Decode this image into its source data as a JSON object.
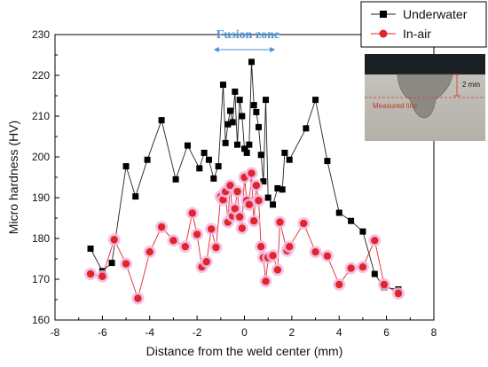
{
  "chart_data": {
    "type": "line",
    "xlabel": "Distance from the weld center (mm)",
    "ylabel": "Micro hardness (HV)",
    "xlim": [
      -8,
      8
    ],
    "ylim": [
      160,
      230
    ],
    "xticks": [
      -8,
      -6,
      -4,
      -2,
      0,
      2,
      4,
      6,
      8
    ],
    "yticks": [
      160,
      170,
      180,
      190,
      200,
      210,
      220,
      230
    ],
    "grid": false,
    "legend_position": "top-right",
    "annotation": {
      "label": "Fusion zone",
      "x_start": -1.3,
      "x_end": 1.3,
      "color": "#4a8fd6"
    },
    "series": [
      {
        "name": "Underwater",
        "marker": "square",
        "color": "#000000",
        "points": [
          [
            -6.5,
            177.5
          ],
          [
            -6.0,
            172.0
          ],
          [
            -5.6,
            174.0
          ],
          [
            -5.0,
            197.7
          ],
          [
            -4.6,
            190.3
          ],
          [
            -4.1,
            199.3
          ],
          [
            -3.5,
            209.0
          ],
          [
            -2.9,
            194.5
          ],
          [
            -2.4,
            202.8
          ],
          [
            -1.9,
            197.2
          ],
          [
            -1.7,
            201.0
          ],
          [
            -1.5,
            199.3
          ],
          [
            -1.3,
            194.7
          ],
          [
            -1.1,
            197.7
          ],
          [
            -0.9,
            217.7
          ],
          [
            -0.8,
            203.4
          ],
          [
            -0.7,
            208.0
          ],
          [
            -0.6,
            211.3
          ],
          [
            -0.5,
            208.5
          ],
          [
            -0.4,
            216.0
          ],
          [
            -0.3,
            203.0
          ],
          [
            -0.2,
            214.0
          ],
          [
            -0.1,
            210.0
          ],
          [
            0.0,
            202.0
          ],
          [
            0.1,
            201.0
          ],
          [
            0.2,
            203.0
          ],
          [
            0.3,
            223.3
          ],
          [
            0.4,
            212.7
          ],
          [
            0.5,
            211.0
          ],
          [
            0.6,
            207.3
          ],
          [
            0.7,
            200.5
          ],
          [
            0.8,
            194.0
          ],
          [
            0.9,
            214.0
          ],
          [
            1.0,
            190.0
          ],
          [
            1.2,
            188.3
          ],
          [
            1.4,
            192.3
          ],
          [
            1.6,
            192.0
          ],
          [
            1.7,
            201.0
          ],
          [
            1.9,
            199.3
          ],
          [
            2.6,
            207.0
          ],
          [
            3.0,
            214.0
          ],
          [
            3.5,
            199.0
          ],
          [
            4.0,
            186.3
          ],
          [
            4.5,
            184.3
          ],
          [
            5.0,
            181.7
          ],
          [
            5.5,
            171.3
          ],
          [
            5.9,
            168.0
          ],
          [
            6.5,
            167.5
          ]
        ]
      },
      {
        "name": "In-air",
        "marker": "circle",
        "color": "#e0262b",
        "points": [
          [
            -6.5,
            171.3
          ],
          [
            -6.0,
            170.7
          ],
          [
            -5.5,
            179.7
          ],
          [
            -5.0,
            173.8
          ],
          [
            -4.5,
            165.3
          ],
          [
            -4.0,
            176.7
          ],
          [
            -3.5,
            182.8
          ],
          [
            -3.0,
            179.5
          ],
          [
            -2.5,
            178.0
          ],
          [
            -2.2,
            186.2
          ],
          [
            -2.0,
            181.0
          ],
          [
            -1.8,
            173.0
          ],
          [
            -1.6,
            174.3
          ],
          [
            -1.4,
            182.3
          ],
          [
            -1.2,
            177.8
          ],
          [
            -1.0,
            190.3
          ],
          [
            -0.9,
            189.5
          ],
          [
            -0.8,
            191.5
          ],
          [
            -0.7,
            184.0
          ],
          [
            -0.6,
            193.0
          ],
          [
            -0.5,
            185.5
          ],
          [
            -0.4,
            187.3
          ],
          [
            -0.3,
            191.5
          ],
          [
            -0.2,
            185.3
          ],
          [
            -0.1,
            182.5
          ],
          [
            0.0,
            195.0
          ],
          [
            0.1,
            189.3
          ],
          [
            0.2,
            188.3
          ],
          [
            0.3,
            196.0
          ],
          [
            0.4,
            184.3
          ],
          [
            0.5,
            193.0
          ],
          [
            0.6,
            189.3
          ],
          [
            0.7,
            178.0
          ],
          [
            0.8,
            175.3
          ],
          [
            0.9,
            169.5
          ],
          [
            1.0,
            175.3
          ],
          [
            1.2,
            175.8
          ],
          [
            1.4,
            172.3
          ],
          [
            1.5,
            184.0
          ],
          [
            1.8,
            177.0
          ],
          [
            1.9,
            178.0
          ],
          [
            2.5,
            183.7
          ],
          [
            3.0,
            176.7
          ],
          [
            3.5,
            175.7
          ],
          [
            4.0,
            168.7
          ],
          [
            4.5,
            172.7
          ],
          [
            5.0,
            173.0
          ],
          [
            5.5,
            179.5
          ],
          [
            5.9,
            168.7
          ],
          [
            6.5,
            166.5
          ]
        ]
      }
    ],
    "inset": {
      "depth_label": "2 mm",
      "line_label": "Measured line"
    }
  }
}
